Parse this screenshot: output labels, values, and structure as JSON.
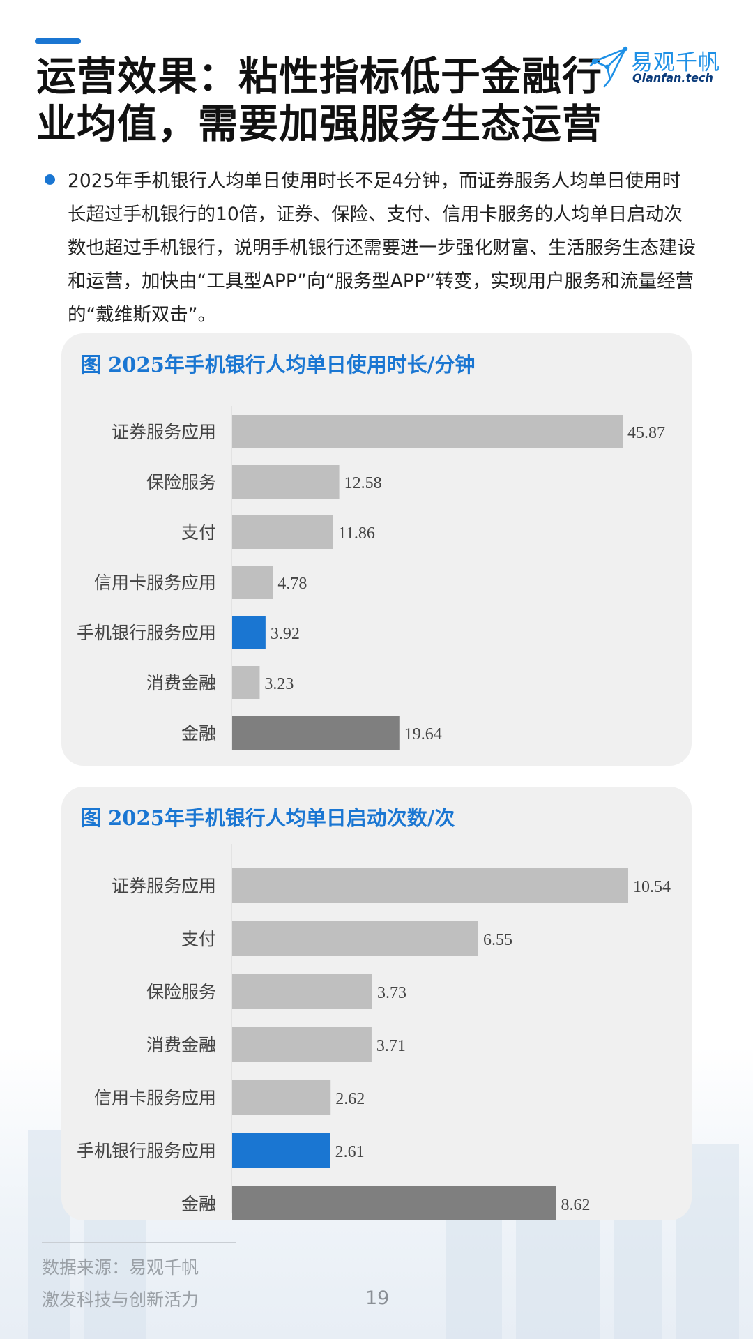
{
  "colors": {
    "accent": "#1a76d2",
    "gray_bar": "#bfbfbf",
    "dark_bar": "#7f7f7f",
    "highlight_bar": "#1a76d2",
    "title_blue": "#1a76d2",
    "logo_blue": "#1e90e6"
  },
  "header": {
    "title_line1": "运营效果：粘性指标低于金融行",
    "title_line2": "业均值，需要加强服务生态运营"
  },
  "logo": {
    "cn": "易观千帆",
    "en": "Qianfan.tech",
    "icon": "paper-plane-network-logo-icon"
  },
  "bullet": {
    "icon": "bullet-dot-icon",
    "text": "2025年手机银行人均单日使用时长不足4分钟，而证券服务人均单日使用时长超过手机银行的10倍，证券、保险、支付、信用卡服务的人均单日启动次数也超过手机银行，说明手机银行还需要进一步强化财富、生活服务生态建设和运营，加快由“工具型APP”向“服务型APP”转变，实现用户服务和流量经营的“戴维斯双击”。"
  },
  "chart_data": [
    {
      "type": "bar",
      "orientation": "horizontal",
      "title": "图  2025年手机银行人均单日使用时长/分钟",
      "categories": [
        "证券服务应用",
        "保险服务",
        "支付",
        "信用卡服务应用",
        "手机银行服务应用",
        "消费金融",
        "金融"
      ],
      "values": [
        45.87,
        12.58,
        11.86,
        4.78,
        3.92,
        3.23,
        19.64
      ],
      "value_labels": [
        "45.87",
        "12.58",
        "11.86",
        "4.78",
        "3.92",
        "3.23",
        "19.64"
      ],
      "bar_colors": [
        "#bfbfbf",
        "#bfbfbf",
        "#bfbfbf",
        "#bfbfbf",
        "#1a76d2",
        "#bfbfbf",
        "#7f7f7f"
      ],
      "xlim": [
        0,
        45.87
      ],
      "grid": false,
      "legend": "none"
    },
    {
      "type": "bar",
      "orientation": "horizontal",
      "title": "图  2025年手机银行人均单日启动次数/次",
      "categories": [
        "证券服务应用",
        "支付",
        "保险服务",
        "消费金融",
        "信用卡服务应用",
        "手机银行服务应用",
        "金融"
      ],
      "values": [
        10.54,
        6.55,
        3.73,
        3.71,
        2.62,
        2.61,
        8.62
      ],
      "value_labels": [
        "10.54",
        "6.55",
        "3.73",
        "3.71",
        "2.62",
        "2.61",
        "8.62"
      ],
      "bar_colors": [
        "#bfbfbf",
        "#bfbfbf",
        "#bfbfbf",
        "#bfbfbf",
        "#bfbfbf",
        "#1a76d2",
        "#7f7f7f"
      ],
      "xlim": [
        0,
        10.54
      ],
      "grid": false,
      "legend": "none"
    }
  ],
  "footer": {
    "source": "数据来源：易观千帆",
    "slogan": "激发科技与创新活力",
    "page_number": "19"
  }
}
